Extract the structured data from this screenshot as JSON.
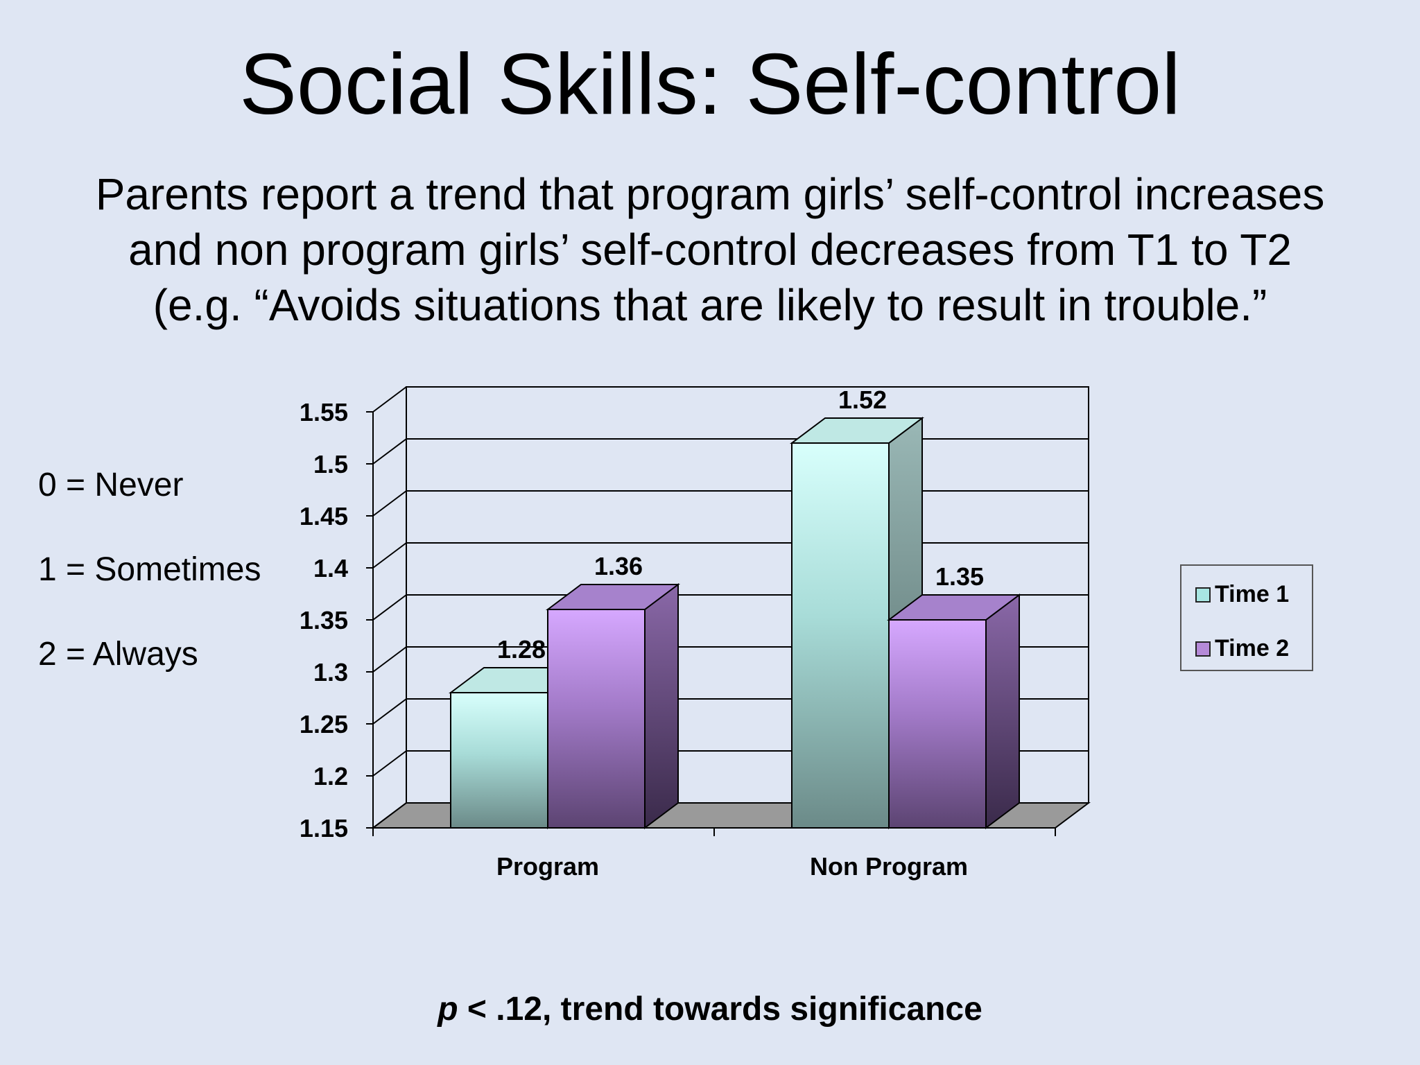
{
  "slide": {
    "title": "Social Skills: Self-control",
    "subtitle_lines": [
      "Parents report a trend that program girls’ self-control increases",
      "and non program girls’ self-control decreases from T1 to T2",
      "(e.g. “Avoids situations that are likely to result in trouble.”"
    ],
    "scale_key": [
      "0 = Never",
      "1 = Sometimes",
      "2 = Always"
    ],
    "footnote_p": "p",
    "footnote_rest": " < .12, trend towards significance"
  },
  "chart_data": {
    "type": "bar",
    "title": "",
    "categories": [
      "Program",
      "Non Program"
    ],
    "series": [
      {
        "name": "Time 1",
        "values": [
          1.28,
          1.52
        ],
        "color": "#a8e6e2"
      },
      {
        "name": "Time 2",
        "values": [
          1.36,
          1.35
        ],
        "color": "#b58ad8"
      }
    ],
    "data_labels": [
      [
        "1.28",
        "1.52"
      ],
      [
        "1.36",
        "1.35"
      ]
    ],
    "ylim": [
      1.15,
      1.55
    ],
    "yticks": [
      "1.55",
      "1.5",
      "1.45",
      "1.4",
      "1.35",
      "1.3",
      "1.25",
      "1.2",
      "1.15"
    ],
    "grid": true,
    "legend_position": "right",
    "style": "3d-clustered-column"
  }
}
